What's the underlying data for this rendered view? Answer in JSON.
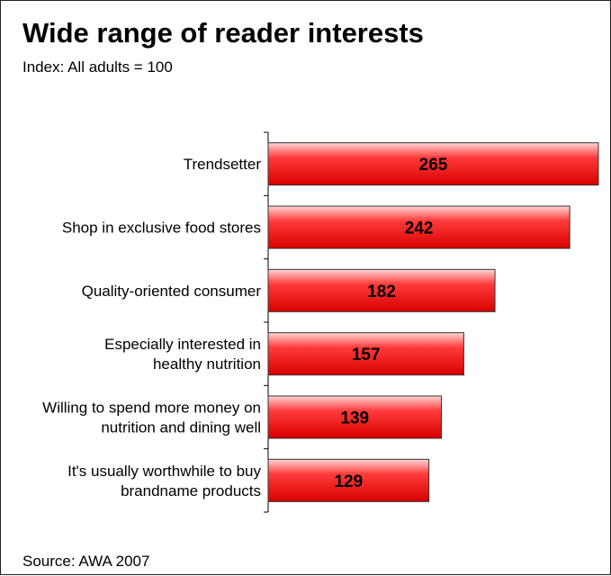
{
  "title": "Wide range of reader interests",
  "subtitle": "Index: All adults = 100",
  "source": "Source: AWA 2007",
  "colors": {
    "bar_fill_light": "#ffd5d5",
    "bar_fill_mid": "#ff3b3b",
    "bar_fill_dark": "#d80000",
    "bar_stroke": "#333333",
    "axis": "#000000"
  },
  "chart_data": {
    "type": "bar",
    "orientation": "horizontal",
    "categories": [
      [
        "Trendsetter"
      ],
      [
        "Shop in exclusive food stores"
      ],
      [
        "Quality-oriented consumer"
      ],
      [
        "Especially interested in",
        "healthy nutrition"
      ],
      [
        "Willing to spend more money on",
        "nutrition and dining well"
      ],
      [
        "It's usually worthwhile to buy",
        "brandname products"
      ]
    ],
    "values": [
      265,
      242,
      182,
      157,
      139,
      129
    ],
    "xlim": [
      0,
      265
    ],
    "xlabel": "",
    "ylabel": "",
    "grid": false,
    "legend": "none"
  }
}
